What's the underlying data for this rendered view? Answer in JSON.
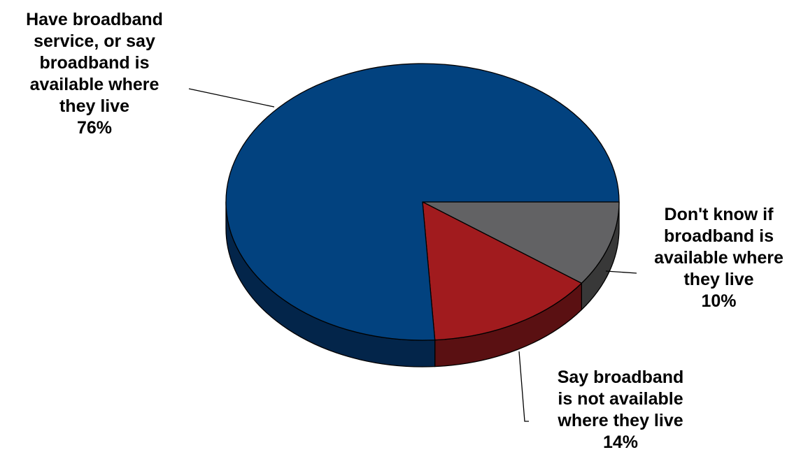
{
  "chart_data": {
    "type": "pie",
    "style": "3d-exploded-free",
    "categories": [
      "Have broadband service, or say broadband is available where they live",
      "Say broadband is not available where they live",
      "Don't know if broadband is available where they live"
    ],
    "values": [
      76,
      14,
      10
    ],
    "value_labels": [
      "76%",
      "14%",
      "10%"
    ],
    "colors": [
      "#02427F",
      "#A11B1E",
      "#626264"
    ],
    "side_colors": [
      "#03254A",
      "#5A1012",
      "#383838"
    ],
    "legend": "none",
    "labels": [
      {
        "lines": [
          "Have broadband",
          "service, or say",
          "broadband is",
          "available where",
          "they live"
        ],
        "value": "76%"
      },
      {
        "lines": [
          "Say broadband",
          "is not available",
          "where they live"
        ],
        "value": "14%"
      },
      {
        "lines": [
          "Don't know if",
          "broadband is",
          "available where",
          "they live"
        ],
        "value": "10%"
      }
    ]
  }
}
